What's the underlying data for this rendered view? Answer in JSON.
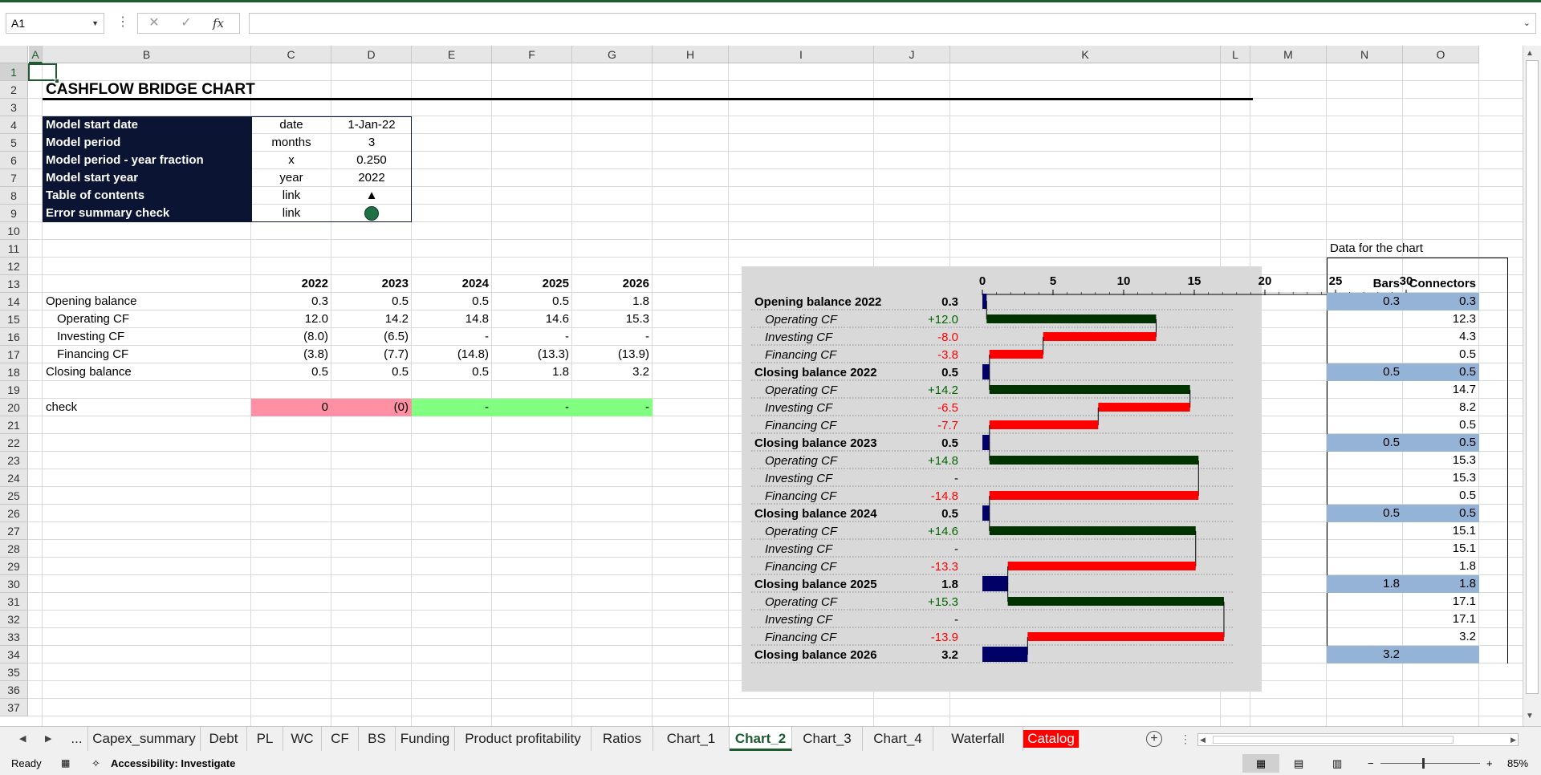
{
  "namebox": "A1",
  "columns": [
    "A",
    "B",
    "C",
    "D",
    "E",
    "F",
    "G",
    "H",
    "I",
    "J",
    "K",
    "L",
    "M",
    "N",
    "O"
  ],
  "rows": [
    "1",
    "2",
    "3",
    "4",
    "5",
    "6",
    "7",
    "8",
    "9",
    "10",
    "11",
    "12",
    "13",
    "14",
    "15",
    "16",
    "17",
    "18",
    "19",
    "20",
    "21",
    "22",
    "23",
    "24",
    "25",
    "26",
    "27",
    "28",
    "29",
    "30",
    "31",
    "32",
    "33",
    "34",
    "35",
    "36",
    "37"
  ],
  "title": "CASHFLOW BRIDGE CHART",
  "settings": [
    {
      "label": "Model start date",
      "unit": "date",
      "value": "1-Jan-22"
    },
    {
      "label": "Model period",
      "unit": "months",
      "value": "3"
    },
    {
      "label": "Model period - year fraction",
      "unit": "x",
      "value": "0.250"
    },
    {
      "label": "Model start year",
      "unit": "year",
      "value": "2022"
    },
    {
      "label": "Table of contents",
      "unit": "link",
      "value": "▲"
    },
    {
      "label": "Error summary check",
      "unit": "link",
      "value": ""
    }
  ],
  "years": [
    "2022",
    "2023",
    "2024",
    "2025",
    "2026"
  ],
  "cf_rows": [
    {
      "label": "Opening balance",
      "values": [
        "0.3",
        "0.5",
        "0.5",
        "0.5",
        "1.8"
      ]
    },
    {
      "label": "Operating CF",
      "values": [
        "12.0",
        "14.2",
        "14.8",
        "14.6",
        "15.3"
      ]
    },
    {
      "label": "Investing CF",
      "values": [
        "(8.0)",
        "(6.5)",
        "-",
        "-",
        "-"
      ]
    },
    {
      "label": "Financing CF",
      "values": [
        "(3.8)",
        "(7.7)",
        "(14.8)",
        "(13.3)",
        "(13.9)"
      ]
    },
    {
      "label": "Closing balance",
      "values": [
        "0.5",
        "0.5",
        "0.5",
        "1.8",
        "3.2"
      ]
    }
  ],
  "check": {
    "label": "check",
    "values": [
      "0",
      "(0)",
      "-",
      "-",
      "-"
    ]
  },
  "chart_data": {
    "type": "bar",
    "subtype": "waterfall",
    "orientation": "horizontal",
    "xlim": [
      0,
      30
    ],
    "x_ticks": [
      "0",
      "5",
      "10",
      "15",
      "20",
      "25",
      "30"
    ],
    "colors": {
      "total": "#000066",
      "positive": "#003300",
      "negative": "#ff0000",
      "connector": "#000000"
    },
    "rows": [
      {
        "label": "Opening balance 2022",
        "value": "0.3",
        "kind": "total",
        "start": 0,
        "end": 0.3
      },
      {
        "label": "Operating CF",
        "value": "+12.0",
        "kind": "positive",
        "start": 0.3,
        "end": 12.3
      },
      {
        "label": "Investing CF",
        "value": "-8.0",
        "kind": "negative",
        "start": 4.3,
        "end": 12.3
      },
      {
        "label": "Financing CF",
        "value": "-3.8",
        "kind": "negative",
        "start": 0.5,
        "end": 4.3
      },
      {
        "label": "Closing balance 2022",
        "value": "0.5",
        "kind": "total",
        "start": 0,
        "end": 0.5
      },
      {
        "label": "Operating CF",
        "value": "+14.2",
        "kind": "positive",
        "start": 0.5,
        "end": 14.7
      },
      {
        "label": "Investing CF",
        "value": "-6.5",
        "kind": "negative",
        "start": 8.2,
        "end": 14.7
      },
      {
        "label": "Financing CF",
        "value": "-7.7",
        "kind": "negative",
        "start": 0.5,
        "end": 8.2
      },
      {
        "label": "Closing balance 2023",
        "value": "0.5",
        "kind": "total",
        "start": 0,
        "end": 0.5
      },
      {
        "label": "Operating CF",
        "value": "+14.8",
        "kind": "positive",
        "start": 0.5,
        "end": 15.3
      },
      {
        "label": "Investing CF",
        "value": "-",
        "kind": "negative",
        "start": 15.3,
        "end": 15.3
      },
      {
        "label": "Financing CF",
        "value": "-14.8",
        "kind": "negative",
        "start": 0.5,
        "end": 15.3
      },
      {
        "label": "Closing balance 2024",
        "value": "0.5",
        "kind": "total",
        "start": 0,
        "end": 0.5
      },
      {
        "label": "Operating CF",
        "value": "+14.6",
        "kind": "positive",
        "start": 0.5,
        "end": 15.1
      },
      {
        "label": "Investing CF",
        "value": "-",
        "kind": "negative",
        "start": 15.1,
        "end": 15.1
      },
      {
        "label": "Financing CF",
        "value": "-13.3",
        "kind": "negative",
        "start": 1.8,
        "end": 15.1
      },
      {
        "label": "Closing balance 2025",
        "value": "1.8",
        "kind": "total",
        "start": 0,
        "end": 1.8
      },
      {
        "label": "Operating CF",
        "value": "+15.3",
        "kind": "positive",
        "start": 1.8,
        "end": 17.1
      },
      {
        "label": "Investing CF",
        "value": "-",
        "kind": "negative",
        "start": 17.1,
        "end": 17.1
      },
      {
        "label": "Financing CF",
        "value": "-13.9",
        "kind": "negative",
        "start": 3.2,
        "end": 17.1
      },
      {
        "label": "Closing balance 2026",
        "value": "3.2",
        "kind": "total",
        "start": 0,
        "end": 3.2
      }
    ]
  },
  "side_data": {
    "title": "Data for the chart",
    "bars_header": "Bars",
    "connectors_header": "Connectors",
    "bars": [
      "0.3",
      "",
      "",
      "",
      "0.5",
      "",
      "",
      "",
      "0.5",
      "",
      "",
      "",
      "0.5",
      "",
      "",
      "",
      "1.8",
      "",
      "",
      "",
      "3.2"
    ],
    "connectors": [
      "0.3",
      "12.3",
      "4.3",
      "0.5",
      "0.5",
      "14.7",
      "8.2",
      "0.5",
      "0.5",
      "15.3",
      "15.3",
      "0.5",
      "0.5",
      "15.1",
      "15.1",
      "1.8",
      "1.8",
      "17.1",
      "17.1",
      "3.2",
      ""
    ]
  },
  "sheet_tabs": [
    "...",
    "Capex_summary",
    "Debt",
    "PL",
    "WC",
    "CF",
    "BS",
    "Funding",
    "Product profitability",
    "Ratios",
    "Chart_1",
    "Chart_2",
    "Chart_3",
    "Chart_4",
    "Waterfall",
    "Catalog"
  ],
  "active_tab": "Chart_2",
  "status": {
    "ready": "Ready",
    "accessibility": "Accessibility: Investigate",
    "zoom": "85%"
  }
}
